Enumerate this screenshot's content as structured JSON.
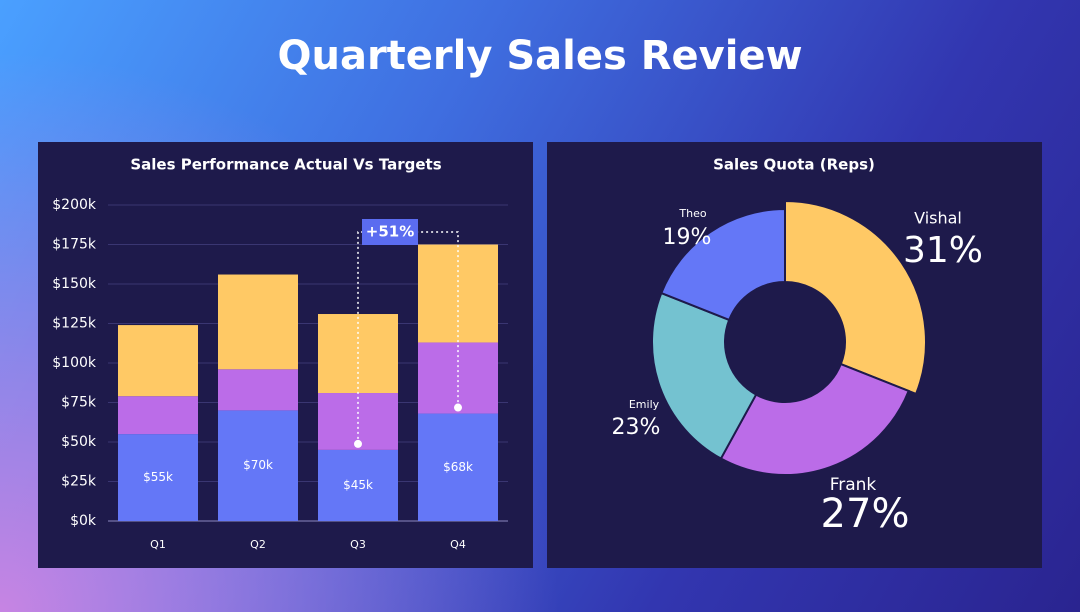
{
  "title": "Quarterly Sales Review",
  "chart_data": [
    {
      "type": "stacked-bar",
      "title": "Sales Performance Actual Vs Targets",
      "categories": [
        "Q1",
        "Q2",
        "Q3",
        "Q4"
      ],
      "series": [
        {
          "color": "#6477f7",
          "values": [
            55,
            70,
            45,
            68
          ],
          "value_labels": [
            "$55k",
            "$70k",
            "$45k",
            "$68k"
          ]
        },
        {
          "color": "#bb6ce8",
          "values": [
            24,
            26,
            36,
            45
          ]
        },
        {
          "color": "#ffc965",
          "values": [
            45,
            60,
            50,
            62
          ]
        }
      ],
      "ylim": [
        0,
        200
      ],
      "yticks": [
        {
          "value": 0,
          "label": "$0k"
        },
        {
          "value": 25,
          "label": "$25k"
        },
        {
          "value": 50,
          "label": "$50k"
        },
        {
          "value": 75,
          "label": "$75k"
        },
        {
          "value": 100,
          "label": "$100k"
        },
        {
          "value": 125,
          "label": "$125k"
        },
        {
          "value": 150,
          "label": "$150k"
        },
        {
          "value": 175,
          "label": "$175k"
        },
        {
          "value": 200,
          "label": "$200k"
        }
      ],
      "grid": true,
      "annotation": {
        "text": "+51%",
        "color": "#5b6cf0"
      }
    },
    {
      "type": "donut",
      "title": "Sales Quota (Reps)",
      "categories": [
        "Vishal",
        "Frank",
        "Emily",
        "Theo"
      ],
      "values": [
        31,
        27,
        23,
        19
      ],
      "value_labels": [
        "31%",
        "27%",
        "23%",
        "19%"
      ],
      "colors": [
        "#ffc965",
        "#bb6ce8",
        "#74c2d0",
        "#6477f7"
      ]
    }
  ]
}
